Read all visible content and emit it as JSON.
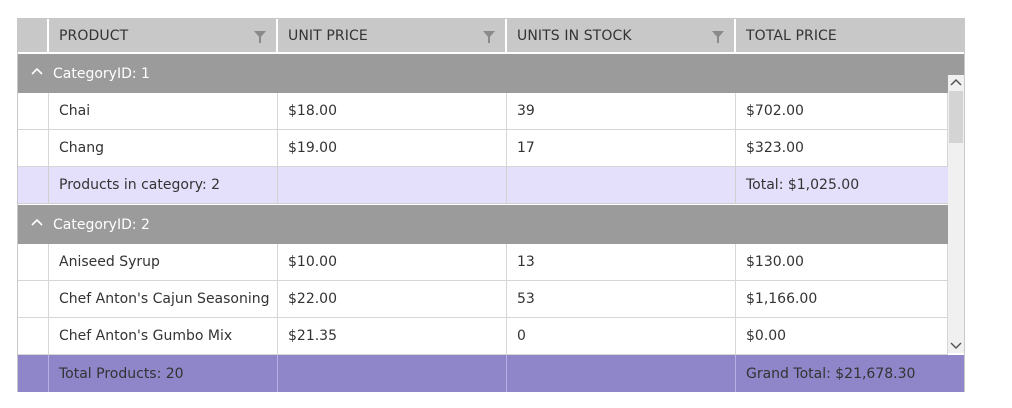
{
  "columns": [
    {
      "label": "PRODUCT",
      "filterable": true
    },
    {
      "label": "UNIT PRICE",
      "filterable": true
    },
    {
      "label": "UNITS IN STOCK",
      "filterable": true
    },
    {
      "label": "TOTAL PRICE",
      "filterable": false
    }
  ],
  "groups": [
    {
      "header": "CategoryID: 1",
      "rows": [
        {
          "product": "Chai",
          "unit_price": "$18.00",
          "units": "39",
          "total": "$702.00"
        },
        {
          "product": "Chang",
          "unit_price": "$19.00",
          "units": "17",
          "total": "$323.00"
        }
      ],
      "summary": {
        "count": "Products in category: 2",
        "total": "Total: $1,025.00"
      }
    },
    {
      "header": "CategoryID: 2",
      "rows": [
        {
          "product": "Aniseed Syrup",
          "unit_price": "$10.00",
          "units": "13",
          "total": "$130.00"
        },
        {
          "product": "Chef Anton's Cajun Seasoning",
          "unit_price": "$22.00",
          "units": "53",
          "total": "$1,166.00"
        },
        {
          "product": "Chef Anton's Gumbo Mix",
          "unit_price": "$21.35",
          "units": "0",
          "total": "$0.00"
        }
      ]
    }
  ],
  "footer": {
    "count": "Total Products: 20",
    "total": "Grand Total: $21,678.30"
  },
  "icons": {
    "filter": "filter-icon",
    "collapse": "chevron-up-icon",
    "scroll_up": "chevron-up-icon",
    "scroll_down": "chevron-down-icon"
  },
  "colors": {
    "header_bg": "#c8c8c8",
    "group_bg": "#9b9b9b",
    "summary_bg": "#e4e0fc",
    "footer_bg": "#8f85c9"
  }
}
